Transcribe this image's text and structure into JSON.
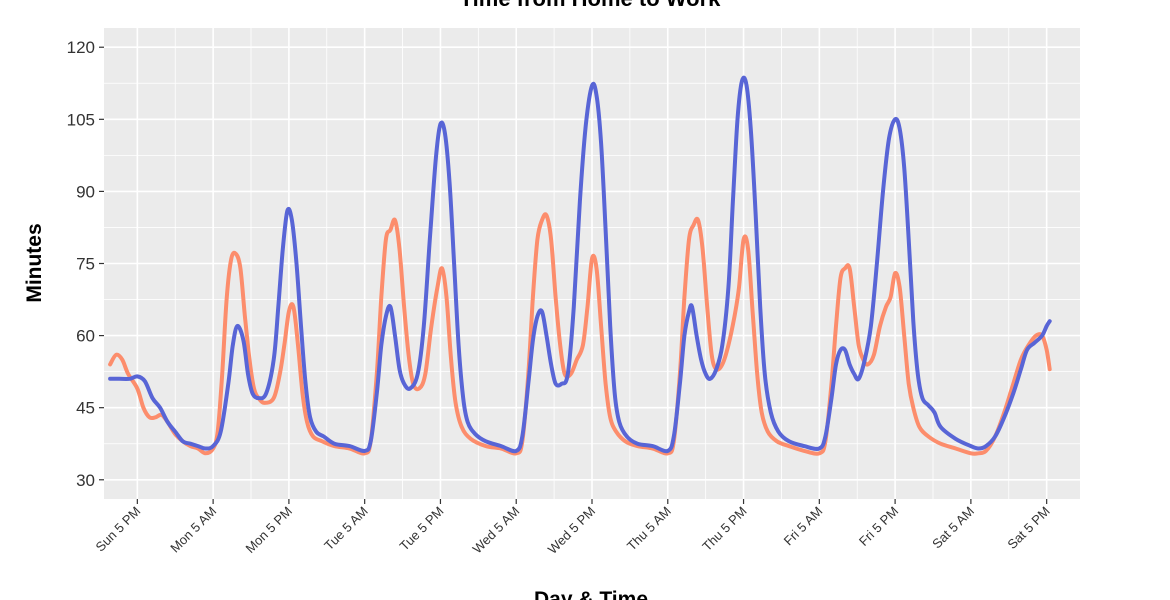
{
  "chart_data": {
    "type": "line",
    "title": "Time from Home to Work",
    "xlabel": "Day & Time",
    "ylabel": "Minutes",
    "ylim": [
      26,
      124
    ],
    "yticks": [
      30,
      45,
      60,
      75,
      90,
      105,
      120
    ],
    "xlim": [
      -2.2,
      62.2
    ],
    "xticks": [
      {
        "label": "Sun  5 PM",
        "x": 0
      },
      {
        "label": "Mon  5 AM",
        "x": 5
      },
      {
        "label": "Mon  5 PM",
        "x": 10
      },
      {
        "label": "Tue  5 AM",
        "x": 15
      },
      {
        "label": "Tue  5 PM",
        "x": 20
      },
      {
        "label": "Wed  5 AM",
        "x": 25
      },
      {
        "label": "Wed  5 PM",
        "x": 30
      },
      {
        "label": "Thu  5 AM",
        "x": 35
      },
      {
        "label": "Thu  5 PM",
        "x": 40
      },
      {
        "label": "Fri  5 AM",
        "x": 45
      },
      {
        "label": "Fri  5 PM",
        "x": 50
      },
      {
        "label": "Sat  5 AM",
        "x": 55
      },
      {
        "label": "Sat  5 PM",
        "x": 60
      }
    ],
    "grid": true,
    "legend": "none",
    "series": [
      {
        "color": "#5865D6",
        "points": [
          [
            -1.8,
            51
          ],
          [
            -1.2,
            51
          ],
          [
            -0.5,
            51
          ],
          [
            0,
            51.5
          ],
          [
            0.5,
            50.5
          ],
          [
            1,
            47
          ],
          [
            1.5,
            45
          ],
          [
            2,
            42
          ],
          [
            2.5,
            40
          ],
          [
            3,
            38
          ],
          [
            3.5,
            37.5
          ],
          [
            4,
            37
          ],
          [
            4.5,
            36.5
          ],
          [
            5,
            37
          ],
          [
            5.5,
            40
          ],
          [
            6,
            50
          ],
          [
            6.3,
            58
          ],
          [
            6.6,
            62
          ],
          [
            7,
            59
          ],
          [
            7.3,
            52
          ],
          [
            7.6,
            48
          ],
          [
            8,
            47
          ],
          [
            8.5,
            48
          ],
          [
            9,
            55
          ],
          [
            9.3,
            66
          ],
          [
            9.6,
            78
          ],
          [
            9.9,
            86
          ],
          [
            10.2,
            84
          ],
          [
            10.5,
            75
          ],
          [
            10.8,
            62
          ],
          [
            11.1,
            50
          ],
          [
            11.4,
            43
          ],
          [
            11.8,
            40
          ],
          [
            12.3,
            39
          ],
          [
            13,
            37.5
          ],
          [
            14,
            37
          ],
          [
            15,
            36
          ],
          [
            15.4,
            38
          ],
          [
            15.8,
            48
          ],
          [
            16.1,
            58
          ],
          [
            16.4,
            64
          ],
          [
            16.7,
            66
          ],
          [
            17,
            60
          ],
          [
            17.3,
            53
          ],
          [
            17.6,
            50
          ],
          [
            18,
            49
          ],
          [
            18.5,
            52
          ],
          [
            18.9,
            62
          ],
          [
            19.3,
            80
          ],
          [
            19.7,
            97
          ],
          [
            20,
            104
          ],
          [
            20.3,
            102
          ],
          [
            20.6,
            92
          ],
          [
            20.9,
            75
          ],
          [
            21.2,
            58
          ],
          [
            21.5,
            47
          ],
          [
            21.8,
            42
          ],
          [
            22.3,
            39.5
          ],
          [
            23,
            38
          ],
          [
            24,
            37
          ],
          [
            25,
            36
          ],
          [
            25.4,
            39
          ],
          [
            25.8,
            50
          ],
          [
            26.1,
            59
          ],
          [
            26.4,
            64
          ],
          [
            26.7,
            65
          ],
          [
            27,
            60
          ],
          [
            27.3,
            54
          ],
          [
            27.6,
            50
          ],
          [
            28,
            50
          ],
          [
            28.4,
            52
          ],
          [
            28.8,
            66
          ],
          [
            29.2,
            88
          ],
          [
            29.6,
            104
          ],
          [
            30,
            112
          ],
          [
            30.3,
            110
          ],
          [
            30.6,
            100
          ],
          [
            30.9,
            82
          ],
          [
            31.2,
            62
          ],
          [
            31.5,
            48
          ],
          [
            31.8,
            42
          ],
          [
            32.3,
            39
          ],
          [
            33,
            37.5
          ],
          [
            34,
            37
          ],
          [
            35,
            36
          ],
          [
            35.4,
            39
          ],
          [
            35.8,
            50
          ],
          [
            36.1,
            60
          ],
          [
            36.4,
            65
          ],
          [
            36.6,
            66
          ],
          [
            36.9,
            60
          ],
          [
            37.2,
            55
          ],
          [
            37.5,
            52
          ],
          [
            37.8,
            51
          ],
          [
            38.2,
            53
          ],
          [
            38.6,
            58
          ],
          [
            39,
            70
          ],
          [
            39.3,
            88
          ],
          [
            39.6,
            105
          ],
          [
            39.9,
            113
          ],
          [
            40.2,
            112
          ],
          [
            40.5,
            102
          ],
          [
            40.8,
            85
          ],
          [
            41.1,
            66
          ],
          [
            41.4,
            52
          ],
          [
            41.8,
            44
          ],
          [
            42.3,
            40
          ],
          [
            43,
            38
          ],
          [
            44,
            37
          ],
          [
            45,
            36.5
          ],
          [
            45.4,
            39
          ],
          [
            45.8,
            47
          ],
          [
            46.1,
            54
          ],
          [
            46.4,
            57
          ],
          [
            46.7,
            57
          ],
          [
            47,
            54
          ],
          [
            47.3,
            52
          ],
          [
            47.6,
            51
          ],
          [
            48,
            55
          ],
          [
            48.4,
            62
          ],
          [
            48.8,
            75
          ],
          [
            49.2,
            90
          ],
          [
            49.6,
            101
          ],
          [
            50,
            105
          ],
          [
            50.3,
            103
          ],
          [
            50.6,
            95
          ],
          [
            50.9,
            80
          ],
          [
            51.2,
            63
          ],
          [
            51.5,
            52
          ],
          [
            51.8,
            47
          ],
          [
            52.2,
            45.5
          ],
          [
            52.6,
            44
          ],
          [
            53,
            41
          ],
          [
            54,
            38.5
          ],
          [
            55,
            37
          ],
          [
            55.5,
            36.5
          ],
          [
            56,
            37
          ],
          [
            56.6,
            39
          ],
          [
            57.2,
            43
          ],
          [
            57.8,
            48
          ],
          [
            58.3,
            53
          ],
          [
            58.7,
            57
          ],
          [
            59.2,
            58.5
          ],
          [
            59.7,
            60
          ],
          [
            60,
            62
          ],
          [
            60.2,
            63
          ]
        ]
      },
      {
        "color": "#FC8D6C",
        "points": [
          [
            -1.8,
            54
          ],
          [
            -1.4,
            56
          ],
          [
            -1,
            55
          ],
          [
            -0.6,
            52
          ],
          [
            0,
            49
          ],
          [
            0.4,
            45
          ],
          [
            0.8,
            43
          ],
          [
            1.2,
            43
          ],
          [
            1.6,
            43.5
          ],
          [
            2,
            42
          ],
          [
            2.5,
            39.5
          ],
          [
            3,
            38
          ],
          [
            3.5,
            37
          ],
          [
            4,
            36.5
          ],
          [
            4.5,
            35.5
          ],
          [
            5,
            36.5
          ],
          [
            5.3,
            40
          ],
          [
            5.6,
            52
          ],
          [
            5.9,
            68
          ],
          [
            6.2,
            76
          ],
          [
            6.5,
            77
          ],
          [
            6.8,
            74
          ],
          [
            7.1,
            64
          ],
          [
            7.4,
            55
          ],
          [
            7.7,
            49
          ],
          [
            8,
            47
          ],
          [
            8.4,
            46
          ],
          [
            9,
            47
          ],
          [
            9.4,
            52
          ],
          [
            9.7,
            58
          ],
          [
            10,
            65
          ],
          [
            10.3,
            66
          ],
          [
            10.6,
            58
          ],
          [
            10.9,
            48
          ],
          [
            11.2,
            42
          ],
          [
            11.6,
            39
          ],
          [
            12.2,
            38
          ],
          [
            13,
            37
          ],
          [
            14,
            36.5
          ],
          [
            15,
            35.5
          ],
          [
            15.4,
            38
          ],
          [
            15.8,
            52
          ],
          [
            16.1,
            68
          ],
          [
            16.4,
            80
          ],
          [
            16.7,
            82
          ],
          [
            17,
            84
          ],
          [
            17.3,
            78
          ],
          [
            17.6,
            66
          ],
          [
            17.9,
            56
          ],
          [
            18.2,
            50
          ],
          [
            18.6,
            49
          ],
          [
            19,
            52
          ],
          [
            19.4,
            62
          ],
          [
            19.8,
            70
          ],
          [
            20.1,
            74
          ],
          [
            20.4,
            68
          ],
          [
            20.7,
            55
          ],
          [
            21,
            46
          ],
          [
            21.4,
            41
          ],
          [
            22,
            38.5
          ],
          [
            23,
            37
          ],
          [
            24,
            36.5
          ],
          [
            25,
            35.5
          ],
          [
            25.4,
            38
          ],
          [
            25.8,
            52
          ],
          [
            26.1,
            68
          ],
          [
            26.4,
            80
          ],
          [
            26.7,
            84
          ],
          [
            27,
            85
          ],
          [
            27.3,
            80
          ],
          [
            27.6,
            68
          ],
          [
            27.9,
            58
          ],
          [
            28.2,
            52
          ],
          [
            28.6,
            52
          ],
          [
            29,
            55
          ],
          [
            29.4,
            58
          ],
          [
            29.7,
            66
          ],
          [
            30,
            76
          ],
          [
            30.3,
            74
          ],
          [
            30.6,
            62
          ],
          [
            30.9,
            50
          ],
          [
            31.2,
            43
          ],
          [
            31.6,
            40
          ],
          [
            32.2,
            38
          ],
          [
            33,
            37
          ],
          [
            34,
            36.5
          ],
          [
            35,
            35.5
          ],
          [
            35.4,
            38
          ],
          [
            35.8,
            52
          ],
          [
            36.1,
            68
          ],
          [
            36.4,
            80
          ],
          [
            36.7,
            83
          ],
          [
            37,
            84
          ],
          [
            37.3,
            78
          ],
          [
            37.6,
            66
          ],
          [
            37.9,
            56
          ],
          [
            38.2,
            53
          ],
          [
            38.6,
            54
          ],
          [
            39,
            58
          ],
          [
            39.4,
            64
          ],
          [
            39.7,
            70
          ],
          [
            40,
            80
          ],
          [
            40.3,
            78
          ],
          [
            40.6,
            65
          ],
          [
            40.9,
            52
          ],
          [
            41.2,
            44
          ],
          [
            41.6,
            40
          ],
          [
            42.2,
            38
          ],
          [
            43,
            37
          ],
          [
            44,
            36
          ],
          [
            45,
            35.5
          ],
          [
            45.4,
            38
          ],
          [
            45.8,
            50
          ],
          [
            46.1,
            62
          ],
          [
            46.4,
            72
          ],
          [
            46.7,
            74
          ],
          [
            47,
            74
          ],
          [
            47.3,
            66
          ],
          [
            47.6,
            58
          ],
          [
            47.9,
            55
          ],
          [
            48.2,
            54
          ],
          [
            48.6,
            56
          ],
          [
            49,
            62
          ],
          [
            49.4,
            66
          ],
          [
            49.7,
            68
          ],
          [
            50,
            73
          ],
          [
            50.3,
            70
          ],
          [
            50.6,
            60
          ],
          [
            50.9,
            50
          ],
          [
            51.2,
            45
          ],
          [
            51.6,
            41
          ],
          [
            52.2,
            39
          ],
          [
            53,
            37.5
          ],
          [
            54,
            36.5
          ],
          [
            55,
            35.5
          ],
          [
            55.5,
            35.5
          ],
          [
            56,
            36
          ],
          [
            56.6,
            39
          ],
          [
            57.2,
            44
          ],
          [
            57.8,
            50
          ],
          [
            58.3,
            55
          ],
          [
            58.8,
            58
          ],
          [
            59.3,
            60
          ],
          [
            59.7,
            60
          ],
          [
            60,
            57
          ],
          [
            60.2,
            53
          ]
        ]
      }
    ]
  }
}
